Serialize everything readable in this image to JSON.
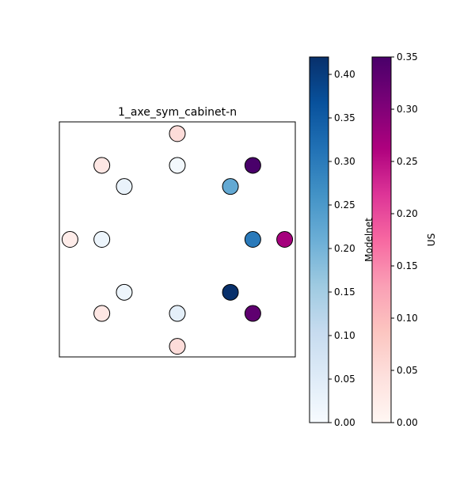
{
  "chart_data": {
    "type": "scatter",
    "title": "1_axe_sym_cabinet-n",
    "points": [
      {
        "x": 0.5,
        "y": 0.95,
        "series": "US",
        "value": 0.05
      },
      {
        "x": 0.18,
        "y": 0.815,
        "series": "US",
        "value": 0.03
      },
      {
        "x": 0.5,
        "y": 0.815,
        "series": "Modelnet",
        "value": 0.01
      },
      {
        "x": 0.82,
        "y": 0.815,
        "series": "US",
        "value": 0.35
      },
      {
        "x": 0.275,
        "y": 0.725,
        "series": "Modelnet",
        "value": 0.03
      },
      {
        "x": 0.725,
        "y": 0.725,
        "series": "Modelnet",
        "value": 0.22
      },
      {
        "x": 0.045,
        "y": 0.5,
        "series": "US",
        "value": 0.02
      },
      {
        "x": 0.18,
        "y": 0.5,
        "series": "Modelnet",
        "value": 0.02
      },
      {
        "x": 0.82,
        "y": 0.5,
        "series": "Modelnet",
        "value": 0.3
      },
      {
        "x": 0.955,
        "y": 0.5,
        "series": "US",
        "value": 0.27
      },
      {
        "x": 0.275,
        "y": 0.275,
        "series": "Modelnet",
        "value": 0.02
      },
      {
        "x": 0.725,
        "y": 0.275,
        "series": "Modelnet",
        "value": 0.42
      },
      {
        "x": 0.18,
        "y": 0.185,
        "series": "US",
        "value": 0.03
      },
      {
        "x": 0.5,
        "y": 0.185,
        "series": "Modelnet",
        "value": 0.04
      },
      {
        "x": 0.82,
        "y": 0.185,
        "series": "US",
        "value": 0.33
      },
      {
        "x": 0.5,
        "y": 0.045,
        "series": "US",
        "value": 0.05
      }
    ],
    "colorbars": [
      {
        "label": "Modelnet",
        "range": [
          0,
          0.42
        ],
        "ticks": [
          0,
          0.05,
          0.1,
          0.15,
          0.2,
          0.25,
          0.3,
          0.35,
          0.4
        ],
        "tick_labels": [
          "0.00",
          "0.05",
          "0.10",
          "0.15",
          "0.20",
          "0.25",
          "0.30",
          "0.35",
          "0.40"
        ],
        "colors": [
          "#f7fbff",
          "#deebf7",
          "#c6dbef",
          "#9ecae1",
          "#6baed6",
          "#4292c6",
          "#2171b5",
          "#08519c",
          "#08306b"
        ]
      },
      {
        "label": "US",
        "range": [
          0,
          0.35
        ],
        "ticks": [
          0,
          0.05,
          0.1,
          0.15,
          0.2,
          0.25,
          0.3,
          0.35
        ],
        "tick_labels": [
          "0.00",
          "0.05",
          "0.10",
          "0.15",
          "0.20",
          "0.25",
          "0.30",
          "0.35"
        ],
        "colors": [
          "#fff7f3",
          "#fde0dd",
          "#fcc5c0",
          "#fa9fb5",
          "#f768a1",
          "#dd3497",
          "#ae017e",
          "#7a0177",
          "#49006a"
        ]
      }
    ],
    "xlim": [
      0,
      1
    ],
    "ylim": [
      0,
      1
    ],
    "axes_ticks_visible": false,
    "grid": false
  }
}
